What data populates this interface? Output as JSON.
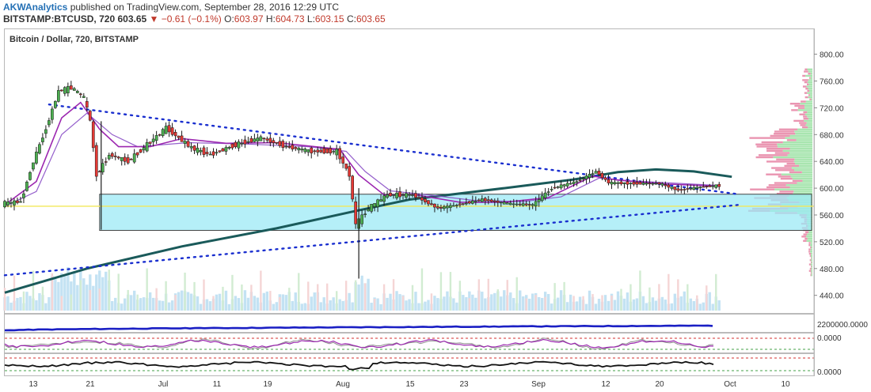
{
  "header": {
    "publisher": "AKWAnalytics",
    "published_text": "published on TradingView.com, September 28, 2016 12:29 UTC"
  },
  "ohlc": {
    "symbol": "BITSTAMP:BTCUSD, 720",
    "last": "603.65",
    "change": "▼ −0.61 (−0.1%)",
    "open_label": "O:",
    "open": "603.97",
    "high_label": "H:",
    "high": "604.73",
    "low_label": "L:",
    "low": "603.15",
    "close_label": "C:",
    "close": "603.65"
  },
  "chart_data": {
    "type": "candlestick",
    "title": "Bitcoin / Dollar, 720, BITSTAMP",
    "x_ticks": [
      "13",
      "21",
      "Jul",
      "11",
      "19",
      "Aug",
      "15",
      "23",
      "Sep",
      "12",
      "20",
      "Oct",
      "10"
    ],
    "x_range": [
      "2016-06-07",
      "2016-10-13"
    ],
    "y_ticks": [
      "800.00",
      "760.00",
      "720.00",
      "680.00",
      "640.00",
      "600.00",
      "560.00",
      "520.00",
      "480.00",
      "440.00"
    ],
    "ylim": [
      420,
      815
    ],
    "sub_panel_labels": [
      "2200000.0000",
      "0.0000",
      "0.0000"
    ],
    "colors": {
      "up": "#4caf50",
      "down": "#e53935",
      "ema_fast": "#9c27b0",
      "ema_slow": "#1e4e79",
      "sma_long": "#1a5a5a",
      "trend": "#1a2fcf",
      "zone_fill": "#9ceaf5",
      "zone_line": "#444444",
      "volume": "#a9d6ee"
    },
    "price_path": [
      {
        "date": "2016-06-07",
        "price": 577
      },
      {
        "date": "2016-06-10",
        "price": 580
      },
      {
        "date": "2016-06-12",
        "price": 640
      },
      {
        "date": "2016-06-14",
        "price": 690
      },
      {
        "date": "2016-06-16",
        "price": 745
      },
      {
        "date": "2016-06-18",
        "price": 750
      },
      {
        "date": "2016-06-20",
        "price": 735
      },
      {
        "date": "2016-06-21",
        "price": 700
      },
      {
        "date": "2016-06-22",
        "price": 620
      },
      {
        "date": "2016-06-24",
        "price": 650
      },
      {
        "date": "2016-06-27",
        "price": 640
      },
      {
        "date": "2016-06-30",
        "price": 665
      },
      {
        "date": "2016-07-03",
        "price": 690
      },
      {
        "date": "2016-07-07",
        "price": 660
      },
      {
        "date": "2016-07-10",
        "price": 650
      },
      {
        "date": "2016-07-14",
        "price": 665
      },
      {
        "date": "2016-07-18",
        "price": 675
      },
      {
        "date": "2016-07-22",
        "price": 662
      },
      {
        "date": "2016-07-26",
        "price": 655
      },
      {
        "date": "2016-07-30",
        "price": 655
      },
      {
        "date": "2016-08-01",
        "price": 620
      },
      {
        "date": "2016-08-02",
        "price": 545
      },
      {
        "date": "2016-08-04",
        "price": 570
      },
      {
        "date": "2016-08-07",
        "price": 590
      },
      {
        "date": "2016-08-11",
        "price": 590
      },
      {
        "date": "2016-08-15",
        "price": 570
      },
      {
        "date": "2016-08-18",
        "price": 575
      },
      {
        "date": "2016-08-22",
        "price": 583
      },
      {
        "date": "2016-08-26",
        "price": 577
      },
      {
        "date": "2016-08-30",
        "price": 575
      },
      {
        "date": "2016-09-02",
        "price": 600
      },
      {
        "date": "2016-09-06",
        "price": 610
      },
      {
        "date": "2016-09-09",
        "price": 625
      },
      {
        "date": "2016-09-11",
        "price": 608
      },
      {
        "date": "2016-09-15",
        "price": 607
      },
      {
        "date": "2016-09-19",
        "price": 607
      },
      {
        "date": "2016-09-22",
        "price": 597
      },
      {
        "date": "2016-09-25",
        "price": 601
      },
      {
        "date": "2016-09-28",
        "price": 603.65
      }
    ],
    "ema_fast": [
      {
        "date": "2016-06-07",
        "price": 575
      },
      {
        "date": "2016-06-12",
        "price": 610
      },
      {
        "date": "2016-06-16",
        "price": 705
      },
      {
        "date": "2016-06-19",
        "price": 728
      },
      {
        "date": "2016-06-22",
        "price": 688
      },
      {
        "date": "2016-06-25",
        "price": 662
      },
      {
        "date": "2016-06-30",
        "price": 662
      },
      {
        "date": "2016-07-05",
        "price": 674
      },
      {
        "date": "2016-07-12",
        "price": 667
      },
      {
        "date": "2016-07-20",
        "price": 668
      },
      {
        "date": "2016-07-30",
        "price": 658
      },
      {
        "date": "2016-08-02",
        "price": 620
      },
      {
        "date": "2016-08-06",
        "price": 590
      },
      {
        "date": "2016-08-11",
        "price": 590
      },
      {
        "date": "2016-08-18",
        "price": 579
      },
      {
        "date": "2016-08-25",
        "price": 579
      },
      {
        "date": "2016-09-01",
        "price": 586
      },
      {
        "date": "2016-09-08",
        "price": 618
      },
      {
        "date": "2016-09-12",
        "price": 612
      },
      {
        "date": "2016-09-20",
        "price": 606
      },
      {
        "date": "2016-09-28",
        "price": 603
      }
    ],
    "ema_slow": [
      {
        "date": "2016-06-07",
        "price": 573
      },
      {
        "date": "2016-06-12",
        "price": 595
      },
      {
        "date": "2016-06-16",
        "price": 680
      },
      {
        "date": "2016-06-20",
        "price": 712
      },
      {
        "date": "2016-06-24",
        "price": 680
      },
      {
        "date": "2016-06-28",
        "price": 662
      },
      {
        "date": "2016-07-06",
        "price": 668
      },
      {
        "date": "2016-07-15",
        "price": 666
      },
      {
        "date": "2016-07-25",
        "price": 662
      },
      {
        "date": "2016-07-31",
        "price": 655
      },
      {
        "date": "2016-08-03",
        "price": 625
      },
      {
        "date": "2016-08-07",
        "price": 596
      },
      {
        "date": "2016-08-13",
        "price": 590
      },
      {
        "date": "2016-08-20",
        "price": 582
      },
      {
        "date": "2016-08-28",
        "price": 580
      },
      {
        "date": "2016-09-03",
        "price": 587
      },
      {
        "date": "2016-09-09",
        "price": 615
      },
      {
        "date": "2016-09-14",
        "price": 611
      },
      {
        "date": "2016-09-28",
        "price": 604
      }
    ],
    "sma_long": [
      {
        "date": "2016-06-07",
        "price": 444
      },
      {
        "date": "2016-06-20",
        "price": 480
      },
      {
        "date": "2016-07-05",
        "price": 513
      },
      {
        "date": "2016-07-20",
        "price": 540
      },
      {
        "date": "2016-08-01",
        "price": 565
      },
      {
        "date": "2016-08-10",
        "price": 583
      },
      {
        "date": "2016-08-25",
        "price": 600
      },
      {
        "date": "2016-09-05",
        "price": 613
      },
      {
        "date": "2016-09-12",
        "price": 624
      },
      {
        "date": "2016-09-18",
        "price": 628
      },
      {
        "date": "2016-09-24",
        "price": 625
      },
      {
        "date": "2016-09-30",
        "price": 617
      }
    ],
    "trend_upper": [
      {
        "date": "2016-06-14",
        "price": 725
      },
      {
        "date": "2016-10-01",
        "price": 591
      }
    ],
    "trend_lower": [
      {
        "date": "2016-06-07",
        "price": 470
      },
      {
        "date": "2016-10-01",
        "price": 575
      }
    ],
    "zone": {
      "date_from": "2016-06-22",
      "date_to": "2016-10-13",
      "price_from": 537,
      "price_to": 591
    },
    "horizontal_line": 573
  }
}
